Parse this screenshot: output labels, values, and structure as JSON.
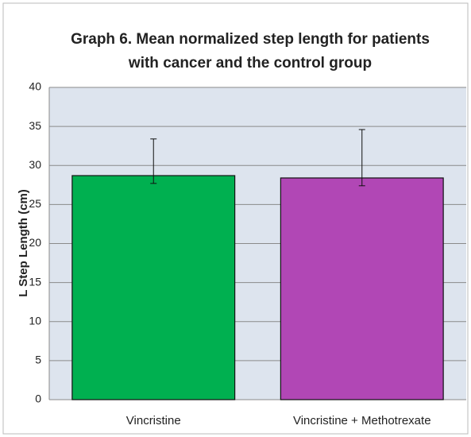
{
  "chart_data": {
    "type": "bar",
    "title": [
      "Graph 6. Mean normalized step length for patients",
      "with cancer and the control group"
    ],
    "y_label": "L Step Length (cm)",
    "categories": [
      "Vincristine",
      "Vincristine + Methotrexate"
    ],
    "values": [
      28.7,
      28.4
    ],
    "errors_upper": [
      4.7,
      6.2
    ],
    "errors_lower": [
      1.0,
      1.0
    ],
    "colors": [
      "#00b050",
      "#b147b5"
    ],
    "ylim": [
      0,
      40
    ],
    "yticks": [
      0,
      5,
      10,
      15,
      20,
      25,
      30,
      35,
      40
    ],
    "grid": true
  }
}
